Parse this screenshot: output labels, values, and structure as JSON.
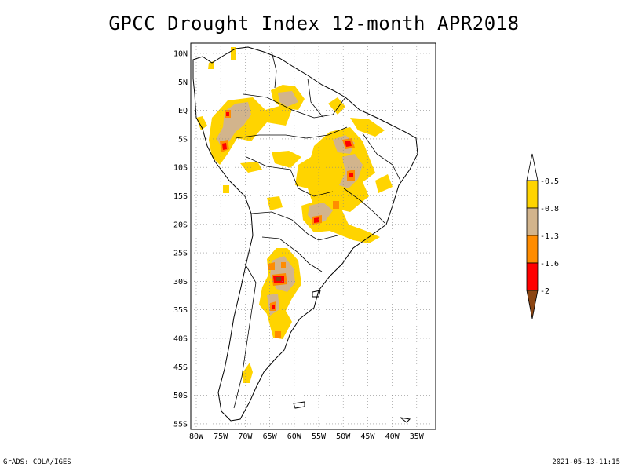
{
  "title": "GPCC Drought Index 12-month APR2018",
  "credit": "GrADS: COLA/IGES",
  "timestamp": "2021-05-13-11:15",
  "map": {
    "lat_ticks": [
      "10N",
      "5N",
      "EQ",
      "5S",
      "10S",
      "15S",
      "20S",
      "25S",
      "30S",
      "35S",
      "40S",
      "45S",
      "50S",
      "55S"
    ],
    "lon_ticks": [
      "80W",
      "75W",
      "70W",
      "65W",
      "60W",
      "55W",
      "50W",
      "45W",
      "40W",
      "35W"
    ],
    "lat_range": [
      -56,
      12
    ],
    "lon_range": [
      -81,
      -32
    ]
  },
  "legend": {
    "labels": [
      "-0.5",
      "-0.8",
      "-1.3",
      "-1.6",
      "-2"
    ],
    "colors": {
      "white": "#ffffff",
      "yellow": "#ffd400",
      "tan": "#d2b48c",
      "orange": "#ff8c00",
      "red": "#ff0000",
      "brown": "#8b4513"
    }
  }
}
